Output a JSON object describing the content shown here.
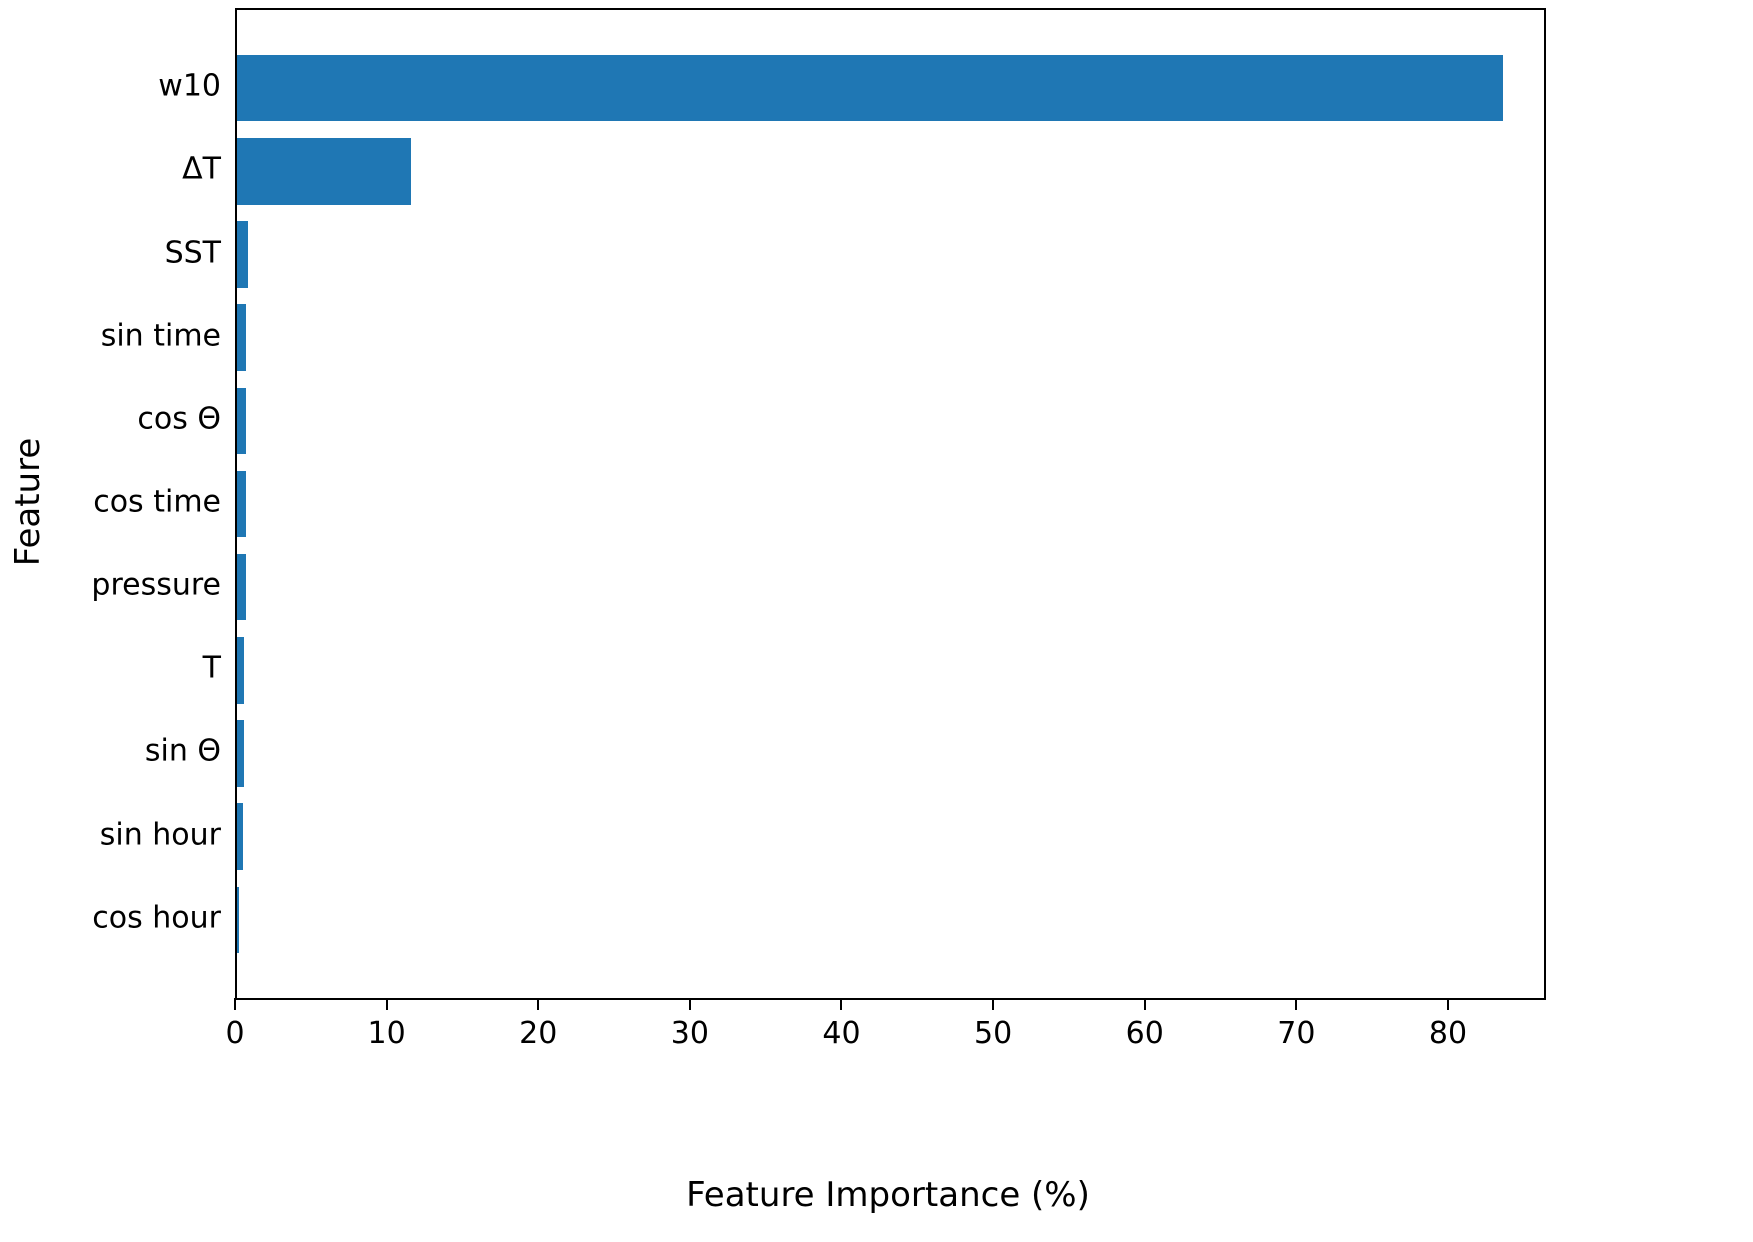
{
  "chart_data": {
    "type": "bar",
    "orientation": "horizontal",
    "title": "",
    "xlabel": "Feature Importance (%)",
    "ylabel": "Feature",
    "categories": [
      "w10",
      "ΔT",
      "SST",
      "sin time",
      "cos Θ",
      "cos time",
      "pressure",
      "T",
      "sin Θ",
      "sin hour",
      "cos hour"
    ],
    "values": [
      83.5,
      11.5,
      0.7,
      0.6,
      0.6,
      0.6,
      0.6,
      0.45,
      0.45,
      0.4,
      0.15
    ],
    "xlim": [
      0,
      86.2
    ],
    "xticks": [
      0,
      10,
      20,
      30,
      40,
      50,
      60,
      70,
      80
    ],
    "grid": false,
    "legend": "none",
    "bar_color": "#1f77b4",
    "sorted": "descending-from-top"
  }
}
